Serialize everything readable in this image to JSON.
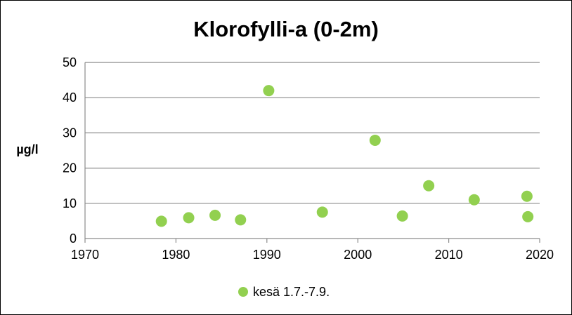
{
  "chart_data": {
    "type": "scatter",
    "title": "Klorofylli-a (0-2m)",
    "ylabel": "µg/l",
    "xlabel": "",
    "xlim": [
      1970,
      2020
    ],
    "ylim": [
      0,
      50
    ],
    "xticks": [
      "1970",
      "1980",
      "1990",
      "2000",
      "2010",
      "2020"
    ],
    "yticks": [
      "0",
      "10",
      "20",
      "30",
      "40",
      "50"
    ],
    "grid": true,
    "legend_position": "bottom",
    "series": [
      {
        "name": "kesä 1.7.-7.9.",
        "color": "#92d050",
        "points": [
          {
            "x": 1978.4,
            "y": 4.9
          },
          {
            "x": 1981.4,
            "y": 5.9
          },
          {
            "x": 1984.3,
            "y": 6.6
          },
          {
            "x": 1987.1,
            "y": 5.3
          },
          {
            "x": 1990.2,
            "y": 42.0
          },
          {
            "x": 1996.1,
            "y": 7.5
          },
          {
            "x": 2001.9,
            "y": 27.9
          },
          {
            "x": 2004.9,
            "y": 6.4
          },
          {
            "x": 2007.8,
            "y": 15.0
          },
          {
            "x": 2012.8,
            "y": 11.0
          },
          {
            "x": 2018.6,
            "y": 12.0
          },
          {
            "x": 2018.7,
            "y": 6.2
          }
        ]
      }
    ]
  }
}
